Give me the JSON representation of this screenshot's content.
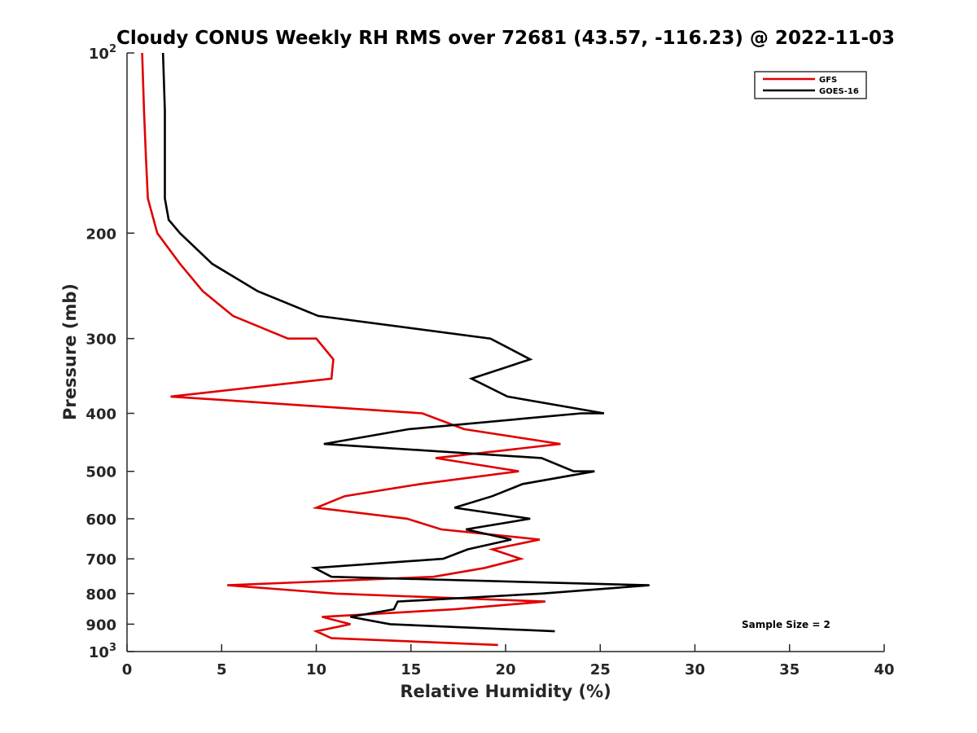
{
  "chart_data": {
    "type": "line",
    "title": "Cloudy CONUS Weekly RH RMS over 72681 (43.57, -116.23) @ 2022-11-03",
    "xlabel": "Relative Humidity (%)",
    "ylabel": "Pressure (mb)",
    "xlim": [
      0,
      40
    ],
    "ylim": [
      100,
      1000
    ],
    "y_scale": "log",
    "y_reversed": true,
    "x_ticks": [
      "0",
      "5",
      "10",
      "15",
      "20",
      "25",
      "30",
      "35",
      "40"
    ],
    "y_ticks": [
      {
        "value": 100,
        "base": "10",
        "exp": "2"
      },
      {
        "value": 200,
        "label": "200"
      },
      {
        "value": 300,
        "label": "300"
      },
      {
        "value": 400,
        "label": "400"
      },
      {
        "value": 500,
        "label": "500"
      },
      {
        "value": 600,
        "label": "600"
      },
      {
        "value": 700,
        "label": "700"
      },
      {
        "value": 800,
        "label": "800"
      },
      {
        "value": 900,
        "label": "900"
      },
      {
        "value": 1000,
        "base": "10",
        "exp": "3"
      }
    ],
    "legend_position": "top-right",
    "grid": false,
    "annotation": "Sample Size = 2",
    "series": [
      {
        "name": "GFS",
        "color": "#e00000",
        "points": [
          {
            "x": 0.8,
            "y": 100
          },
          {
            "x": 0.9,
            "y": 125
          },
          {
            "x": 1.0,
            "y": 150
          },
          {
            "x": 1.1,
            "y": 175
          },
          {
            "x": 1.6,
            "y": 200
          },
          {
            "x": 2.8,
            "y": 225
          },
          {
            "x": 4.0,
            "y": 250
          },
          {
            "x": 5.6,
            "y": 275
          },
          {
            "x": 8.5,
            "y": 300
          },
          {
            "x": 10.0,
            "y": 300
          },
          {
            "x": 10.9,
            "y": 325
          },
          {
            "x": 10.8,
            "y": 350
          },
          {
            "x": 2.3,
            "y": 375
          },
          {
            "x": 15.6,
            "y": 400
          },
          {
            "x": 17.8,
            "y": 425
          },
          {
            "x": 22.9,
            "y": 450
          },
          {
            "x": 16.3,
            "y": 475
          },
          {
            "x": 20.7,
            "y": 500
          },
          {
            "x": 20.7,
            "y": 500
          },
          {
            "x": 15.5,
            "y": 525
          },
          {
            "x": 11.5,
            "y": 550
          },
          {
            "x": 10.0,
            "y": 575
          },
          {
            "x": 14.8,
            "y": 600
          },
          {
            "x": 16.6,
            "y": 625
          },
          {
            "x": 21.8,
            "y": 650
          },
          {
            "x": 19.3,
            "y": 675
          },
          {
            "x": 20.8,
            "y": 700
          },
          {
            "x": 18.9,
            "y": 725
          },
          {
            "x": 16.2,
            "y": 750
          },
          {
            "x": 5.3,
            "y": 775
          },
          {
            "x": 11.0,
            "y": 800
          },
          {
            "x": 22.1,
            "y": 825
          },
          {
            "x": 17.3,
            "y": 850
          },
          {
            "x": 10.3,
            "y": 875
          },
          {
            "x": 11.8,
            "y": 900
          },
          {
            "x": 10.0,
            "y": 925
          },
          {
            "x": 10.8,
            "y": 950
          },
          {
            "x": 19.6,
            "y": 975
          }
        ]
      },
      {
        "name": "GOES-16",
        "color": "#000000",
        "points": [
          {
            "x": 1.9,
            "y": 100
          },
          {
            "x": 2.0,
            "y": 125
          },
          {
            "x": 2.0,
            "y": 150
          },
          {
            "x": 2.0,
            "y": 175
          },
          {
            "x": 2.2,
            "y": 190
          },
          {
            "x": 2.8,
            "y": 200
          },
          {
            "x": 4.5,
            "y": 225
          },
          {
            "x": 6.9,
            "y": 250
          },
          {
            "x": 10.1,
            "y": 275
          },
          {
            "x": 19.2,
            "y": 300
          },
          {
            "x": 21.3,
            "y": 325
          },
          {
            "x": 18.2,
            "y": 350
          },
          {
            "x": 20.1,
            "y": 375
          },
          {
            "x": 25.2,
            "y": 400
          },
          {
            "x": 24.0,
            "y": 400
          },
          {
            "x": 14.9,
            "y": 425
          },
          {
            "x": 10.4,
            "y": 450
          },
          {
            "x": 21.9,
            "y": 475
          },
          {
            "x": 23.6,
            "y": 500
          },
          {
            "x": 24.7,
            "y": 500
          },
          {
            "x": 20.9,
            "y": 525
          },
          {
            "x": 19.3,
            "y": 550
          },
          {
            "x": 17.3,
            "y": 575
          },
          {
            "x": 21.3,
            "y": 600
          },
          {
            "x": 17.9,
            "y": 625
          },
          {
            "x": 20.3,
            "y": 650
          },
          {
            "x": 18.0,
            "y": 675
          },
          {
            "x": 16.7,
            "y": 700
          },
          {
            "x": 9.9,
            "y": 725
          },
          {
            "x": 10.8,
            "y": 750
          },
          {
            "x": 27.6,
            "y": 775
          },
          {
            "x": 21.9,
            "y": 800
          },
          {
            "x": 14.3,
            "y": 825
          },
          {
            "x": 14.1,
            "y": 850
          },
          {
            "x": 11.8,
            "y": 875
          },
          {
            "x": 13.9,
            "y": 900
          },
          {
            "x": 22.6,
            "y": 925
          }
        ]
      }
    ]
  }
}
